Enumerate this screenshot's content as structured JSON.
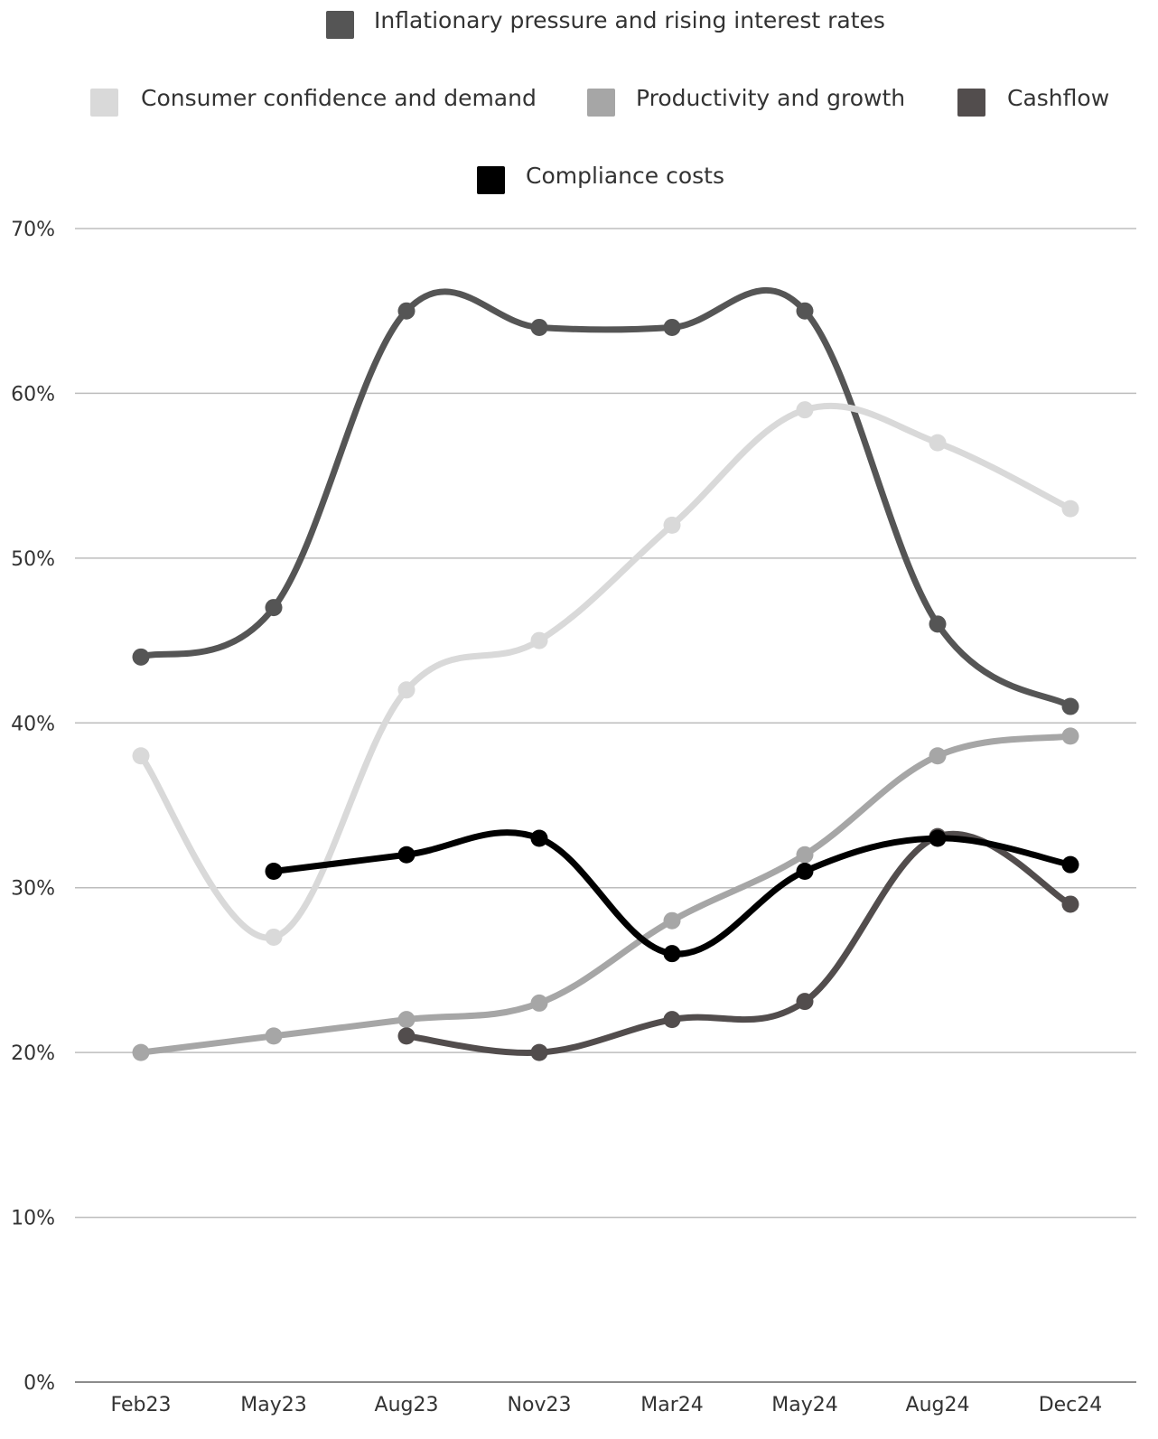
{
  "chart_data": {
    "type": "line",
    "title": "",
    "xlabel": "",
    "ylabel": "",
    "categories": [
      "Feb23",
      "May23",
      "Aug23",
      "Nov23",
      "Mar24",
      "May24",
      "Aug24",
      "Dec24"
    ],
    "ylim": [
      0,
      70
    ],
    "yticks": [
      "0%",
      "10%",
      "20%",
      "30%",
      "40%",
      "50%",
      "60%",
      "70%"
    ],
    "grid": true,
    "legend_position": "top",
    "series": [
      {
        "name": "Inflationary pressure and rising interest rates",
        "color": "#555555",
        "values": [
          44,
          47,
          65,
          64,
          64,
          65,
          46,
          41
        ]
      },
      {
        "name": "Consumer confidence and demand",
        "color": "#d9d9d9",
        "values": [
          38,
          27,
          42,
          45,
          52,
          59,
          57,
          53
        ]
      },
      {
        "name": "Productivity and growth",
        "color": "#a6a6a6",
        "values": [
          20,
          21,
          22,
          23,
          28,
          32,
          38,
          39.2
        ]
      },
      {
        "name": "Cashflow",
        "color": "#524d4d",
        "values": [
          null,
          null,
          21,
          20,
          22,
          23.1,
          33.1,
          29
        ]
      },
      {
        "name": "Compliance costs",
        "color": "#000000",
        "values": [
          null,
          31,
          32,
          33,
          26,
          31,
          33,
          31.4
        ]
      }
    ]
  }
}
